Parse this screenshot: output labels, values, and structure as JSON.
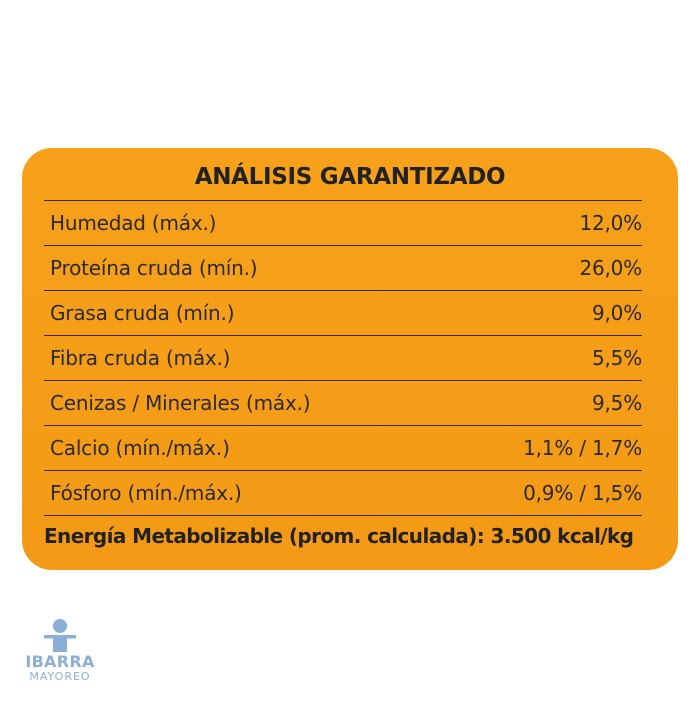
{
  "table": {
    "title": "ANÁLISIS GARANTIZADO",
    "rows": [
      {
        "label": "Humedad (máx.)",
        "value": "12,0%"
      },
      {
        "label": "Proteína cruda (mín.)",
        "value": "26,0%"
      },
      {
        "label": "Grasa cruda (mín.)",
        "value": "9,0%"
      },
      {
        "label": "Fibra cruda (máx.)",
        "value": "5,5%"
      },
      {
        "label": "Cenizas / Minerales (máx.)",
        "value": "9,5%"
      },
      {
        "label": "Calcio (mín./máx.)",
        "value": "1,1% / 1,7%"
      },
      {
        "label": "Fósforo (mín./máx.)",
        "value": "0,9% / 1,5%"
      }
    ],
    "energy": "Energía Metabolizable (prom. calculada): 3.500 kcal/kg"
  },
  "logo": {
    "name": "IBARRA",
    "subtitle": "MAYOREO",
    "icon": "person-icon"
  },
  "colors": {
    "panel": "#f7a11a",
    "text": "#2a2a2a",
    "logo": "#8bb0d8"
  }
}
